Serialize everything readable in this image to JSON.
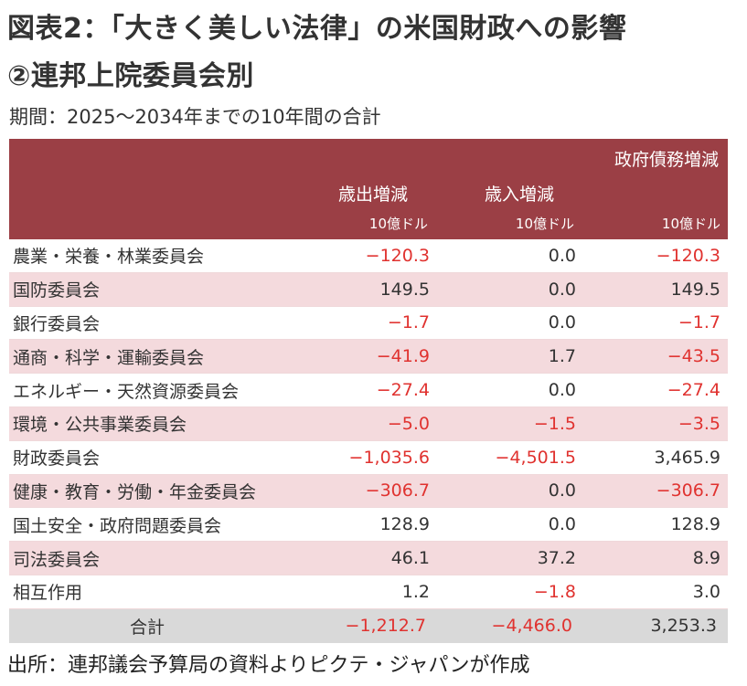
{
  "title_line1": "図表2：「大きく美しい法律」の米国財政への影響",
  "title_line2": "②連邦上院委員会別",
  "period": "期間：2025～2034年までの10年間の合計",
  "header": {
    "debt_change": "政府債務増減",
    "outlay_change": "歳出増減",
    "revenue_change": "歳入増減",
    "unit": "10億ドル"
  },
  "rows": [
    {
      "name": "農業・栄養・林業委員会",
      "outlay": "-120.3",
      "revenue": "0.0",
      "debt": "-120.3"
    },
    {
      "name": "国防委員会",
      "outlay": "149.5",
      "revenue": "0.0",
      "debt": "149.5"
    },
    {
      "name": "銀行委員会",
      "outlay": "-1.7",
      "revenue": "0.0",
      "debt": "-1.7"
    },
    {
      "name": "通商・科学・運輸委員会",
      "outlay": "-41.9",
      "revenue": "1.7",
      "debt": "-43.5"
    },
    {
      "name": "エネルギー・天然資源委員会",
      "outlay": "-27.4",
      "revenue": "0.0",
      "debt": "-27.4"
    },
    {
      "name": "環境・公共事業委員会",
      "outlay": "-5.0",
      "revenue": "-1.5",
      "debt": "-3.5"
    },
    {
      "name": "財政委員会",
      "outlay": "-1,035.6",
      "revenue": "-4,501.5",
      "debt": "3,465.9"
    },
    {
      "name": "健康・教育・労働・年金委員会",
      "outlay": "-306.7",
      "revenue": "0.0",
      "debt": "-306.7"
    },
    {
      "name": "国土安全・政府問題委員会",
      "outlay": "128.9",
      "revenue": "0.0",
      "debt": "128.9"
    },
    {
      "name": "司法委員会",
      "outlay": "46.1",
      "revenue": "37.2",
      "debt": "8.9"
    },
    {
      "name": "相互作用",
      "outlay": "1.2",
      "revenue": "-1.8",
      "debt": "3.0"
    }
  ],
  "total": {
    "name": "合計",
    "outlay": "-1,212.7",
    "revenue": "-4,466.0",
    "debt": "3,253.3"
  },
  "source": "出所：連邦議会予算局の資料よりピクテ・ジャパンが作成",
  "colors": {
    "header_bg": "#9b3f45",
    "alt_row": "#f4dadd",
    "negative": "#e0322f",
    "total_bg": "#d9d9d9"
  }
}
